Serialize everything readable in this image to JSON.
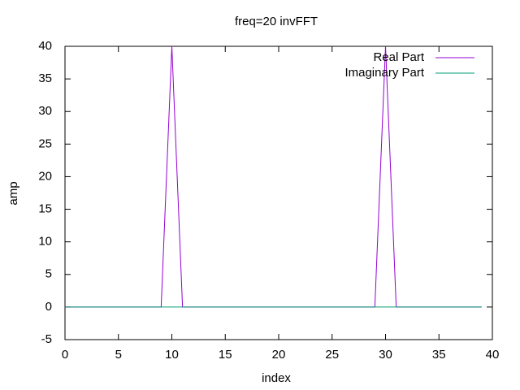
{
  "chart_data": {
    "type": "line",
    "title": "freq=20 invFFT",
    "xlabel": "index",
    "ylabel": "amp",
    "x": [
      0,
      1,
      2,
      3,
      4,
      5,
      6,
      7,
      8,
      9,
      10,
      11,
      12,
      13,
      14,
      15,
      16,
      17,
      18,
      19,
      20,
      21,
      22,
      23,
      24,
      25,
      26,
      27,
      28,
      29,
      30,
      31,
      32,
      33,
      34,
      35,
      36,
      37,
      38,
      39
    ],
    "series": [
      {
        "name": "Real Part",
        "color": "#9400d3",
        "values": [
          0,
          0,
          0,
          0,
          0,
          0,
          0,
          0,
          0,
          0,
          40,
          0,
          0,
          0,
          0,
          0,
          0,
          0,
          0,
          0,
          0,
          0,
          0,
          0,
          0,
          0,
          0,
          0,
          0,
          0,
          40,
          0,
          0,
          0,
          0,
          0,
          0,
          0,
          0,
          0
        ]
      },
      {
        "name": "Imaginary Part",
        "color": "#009e73",
        "values": [
          0,
          0,
          0,
          0,
          0,
          0,
          0,
          0,
          0,
          0,
          0,
          0,
          0,
          0,
          0,
          0,
          0,
          0,
          0,
          0,
          0,
          0,
          0,
          0,
          0,
          0,
          0,
          0,
          0,
          0,
          0,
          0,
          0,
          0,
          0,
          0,
          0,
          0,
          0,
          0
        ]
      }
    ],
    "xlim": [
      0,
      40
    ],
    "xticks": [
      0,
      5,
      10,
      15,
      20,
      25,
      30,
      35,
      40
    ],
    "ylim": [
      -5,
      40
    ],
    "yticks": [
      -5,
      0,
      5,
      10,
      15,
      20,
      25,
      30,
      35,
      40
    ],
    "legend": "top-right"
  }
}
